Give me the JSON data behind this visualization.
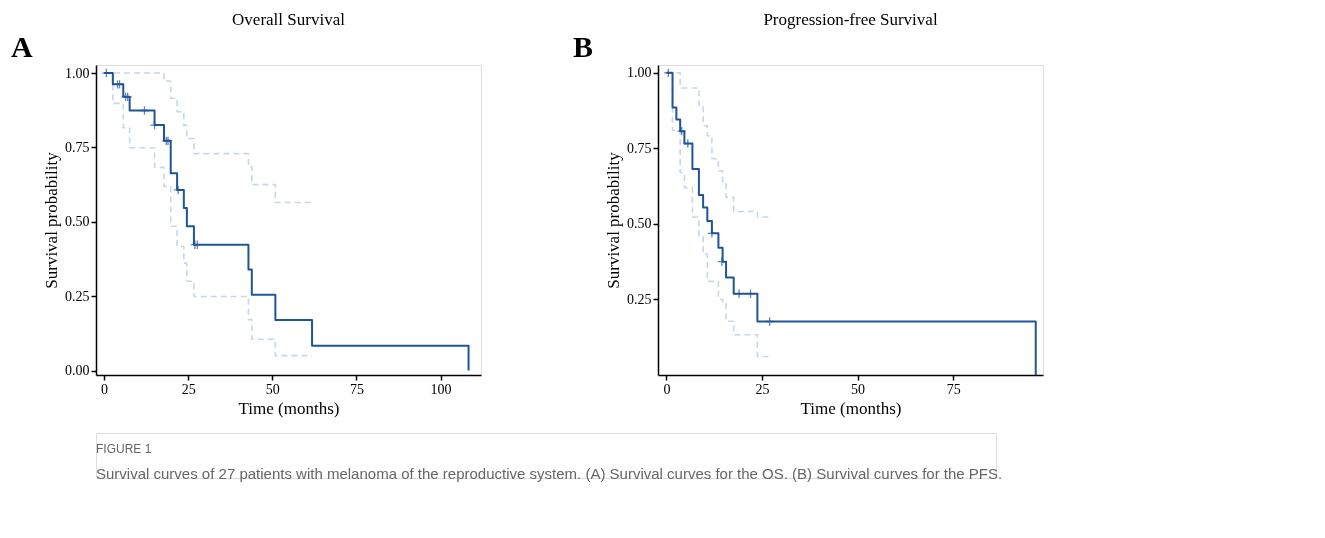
{
  "chart_data": [
    {
      "type": "step",
      "title": "Overall Survival",
      "xlabel": "Time (months)",
      "ylabel": "Survival probability",
      "annotations": [
        "A",
        "FIGURE 1",
        "Survival curves of 27 patients with melanoma of the reproductive system. (A) Survival curves for the OS. (B) Survival curves for the PFS."
      ],
      "xlim": [
        -2.4,
        112
      ],
      "ylim": [
        -0.015,
        1.027
      ],
      "xticks": [
        0,
        25,
        50,
        75,
        100
      ],
      "yticks": [
        {
          "value": 0,
          "label": "0.00"
        },
        {
          "value": 0.25,
          "label": "0.25"
        },
        {
          "value": 0.5,
          "label": "0.50"
        },
        {
          "value": 0.75,
          "label": "0.75"
        },
        {
          "value": 1,
          "label": "1.00"
        }
      ],
      "grid": false,
      "series": [
        {
          "line_style": "dashed",
          "color": "#c8d6e6",
          "x": [
            0,
            17.8,
            19.8,
            21.7,
            23.7,
            24.6,
            26.7,
            42.9,
            43.9,
            50.9,
            61.8
          ],
          "values": [
            1.0,
            0.973,
            0.915,
            0.87,
            0.824,
            0.78,
            0.729,
            0.685,
            0.625,
            0.565,
            0.565
          ]
        },
        {
          "line_style": "dashed",
          "color": "#c8d6e6",
          "x": [
            0,
            2.6,
            5.7,
            7.6,
            15,
            17.8,
            19.8,
            21.7,
            23.7,
            24.6,
            26.7,
            42.9,
            43.9,
            50.9,
            61.8
          ],
          "values": [
            1.0,
            0.898,
            0.816,
            0.749,
            0.683,
            0.619,
            0.485,
            0.417,
            0.361,
            0.3,
            0.249,
            0.171,
            0.105,
            0.05,
            0.05
          ]
        },
        {
          "line_style": "solid",
          "color": "#1f5497",
          "x": [
            0,
            2.6,
            5.7,
            7.6,
            15,
            17.8,
            19.8,
            21.7,
            23.7,
            24.6,
            26.7,
            42.9,
            43.9,
            50.9,
            61.8,
            108.3
          ],
          "values": [
            1.0,
            0.962,
            0.92,
            0.874,
            0.825,
            0.772,
            0.663,
            0.607,
            0.546,
            0.485,
            0.423,
            0.34,
            0.255,
            0.17,
            0.083,
            0
          ]
        },
        {
          "type": "scatter",
          "marker": "cross",
          "color": "#1f5497",
          "x": [
            0.7,
            4,
            4.6,
            6.4,
            7,
            12,
            15,
            18.5,
            19,
            22,
            27,
            27.7
          ],
          "values": [
            1.0,
            0.962,
            0.962,
            0.92,
            0.92,
            0.874,
            0.825,
            0.772,
            0.772,
            0.607,
            0.423,
            0.423
          ]
        }
      ]
    },
    {
      "type": "step",
      "title": "Progression-free Survival",
      "xlabel": "Time (months)",
      "ylabel": "Survival probability",
      "annotations": [
        "B"
      ],
      "xlim": [
        -2.2,
        98.5
      ],
      "ylim": [
        0,
        1.026
      ],
      "xticks": [
        0,
        25,
        50,
        75
      ],
      "yticks": [
        {
          "value": 0.25,
          "label": "0.25"
        },
        {
          "value": 0.5,
          "label": "0.50"
        },
        {
          "value": 0.75,
          "label": "0.75"
        },
        {
          "value": 1,
          "label": "1.00"
        }
      ],
      "grid": false,
      "series": [
        {
          "line_style": "dashed",
          "color": "#c8d6e6",
          "x": [
            0,
            3.6,
            8.5,
            9.6,
            10.7,
            11.9,
            13.6,
            14.7,
            15.6,
            17.6,
            23.8,
            26.7
          ],
          "values": [
            1.0,
            0.95,
            0.888,
            0.825,
            0.792,
            0.716,
            0.676,
            0.638,
            0.588,
            0.541,
            0.523,
            0.523
          ]
        },
        {
          "line_style": "dashed",
          "color": "#c8d6e6",
          "x": [
            0,
            1.6,
            3.6,
            4.7,
            6.8,
            8.5,
            9.6,
            10.7,
            13.6,
            14.7,
            15.6,
            17.6,
            23.8,
            26.7
          ],
          "values": [
            1.0,
            0.81,
            0.67,
            0.62,
            0.523,
            0.46,
            0.4,
            0.31,
            0.25,
            0.243,
            0.178,
            0.133,
            0.061,
            0.061
          ]
        },
        {
          "line_style": "solid",
          "color": "#1f5497",
          "x": [
            0,
            1.6,
            2.6,
            3.6,
            4.7,
            6.8,
            8.5,
            9.6,
            10.7,
            11.9,
            13.6,
            14.7,
            15.6,
            17.6,
            23.8,
            96.6
          ],
          "values": [
            1.0,
            0.885,
            0.846,
            0.807,
            0.766,
            0.682,
            0.596,
            0.554,
            0.51,
            0.469,
            0.421,
            0.375,
            0.323,
            0.269,
            0.177,
            0
          ]
        },
        {
          "type": "scatter",
          "marker": "cross",
          "color": "#1f5497",
          "x": [
            0.5,
            4,
            5.6,
            11.9,
            14.5,
            19,
            22,
            27
          ],
          "values": [
            1.0,
            0.807,
            0.766,
            0.469,
            0.375,
            0.269,
            0.269,
            0.177
          ]
        }
      ]
    }
  ]
}
